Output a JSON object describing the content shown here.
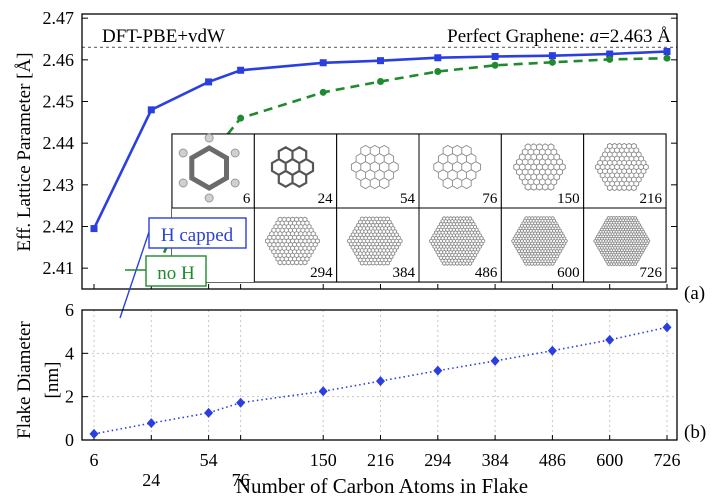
{
  "chart_data": [
    {
      "type": "line",
      "panel_label": "(a)",
      "ylabel": "Eff. Lattice Parameter [Å]",
      "ylim": [
        2.405,
        2.471
      ],
      "yticks": [
        2.41,
        2.42,
        2.43,
        2.44,
        2.45,
        2.46,
        2.47
      ],
      "xticks": [
        6,
        24,
        54,
        76,
        150,
        216,
        294,
        384,
        486,
        600,
        726
      ],
      "method_label": "DFT-PBE+vdW",
      "reference": {
        "label_prefix": "Perfect Graphene: ",
        "label_var": "a",
        "label_value": "=2.463 Å",
        "value": 2.463
      },
      "series": [
        {
          "name": "H capped",
          "color": "#2b3fe0",
          "style": "solid",
          "x": [
            6,
            24,
            54,
            76,
            150,
            216,
            294,
            384,
            486,
            600,
            726
          ],
          "y": [
            2.4195,
            2.448,
            2.4547,
            2.4575,
            2.4593,
            2.4598,
            2.4605,
            2.4608,
            2.461,
            2.4614,
            2.462
          ]
        },
        {
          "name": "no H",
          "color": "#1f8a2e",
          "style": "dashed",
          "x": [
            24,
            54,
            76,
            150,
            216,
            294,
            384,
            486,
            600,
            726
          ],
          "y": [
            2.4072,
            2.4365,
            2.446,
            2.4522,
            2.4548,
            2.4572,
            2.4587,
            2.4594,
            2.4601,
            2.4604
          ]
        }
      ],
      "inset_flakes": [
        {
          "count": "6"
        },
        {
          "count": "24"
        },
        {
          "count": "54"
        },
        {
          "count": "76"
        },
        {
          "count": "150"
        },
        {
          "count": "216"
        },
        {
          "count": "294"
        },
        {
          "count": "384"
        },
        {
          "count": "486"
        },
        {
          "count": "600"
        },
        {
          "count": "726"
        }
      ]
    },
    {
      "type": "line",
      "panel_label": "(b)",
      "ylabel_line1": "Flake Diameter",
      "ylabel_line2": "[nm]",
      "xlabel": "Number of Carbon Atoms in Flake",
      "ylim": [
        0,
        6
      ],
      "yticks": [
        0,
        2,
        4,
        6
      ],
      "xticks": [
        6,
        24,
        54,
        76,
        150,
        216,
        294,
        384,
        486,
        600,
        726
      ],
      "series": [
        {
          "color": "#2b3fe0",
          "style": "dotted",
          "x": [
            6,
            24,
            54,
            76,
            150,
            216,
            294,
            384,
            486,
            600,
            726
          ],
          "y": [
            0.28,
            0.78,
            1.25,
            1.72,
            2.25,
            2.72,
            3.2,
            3.65,
            4.12,
            4.62,
            5.2
          ]
        }
      ]
    }
  ]
}
